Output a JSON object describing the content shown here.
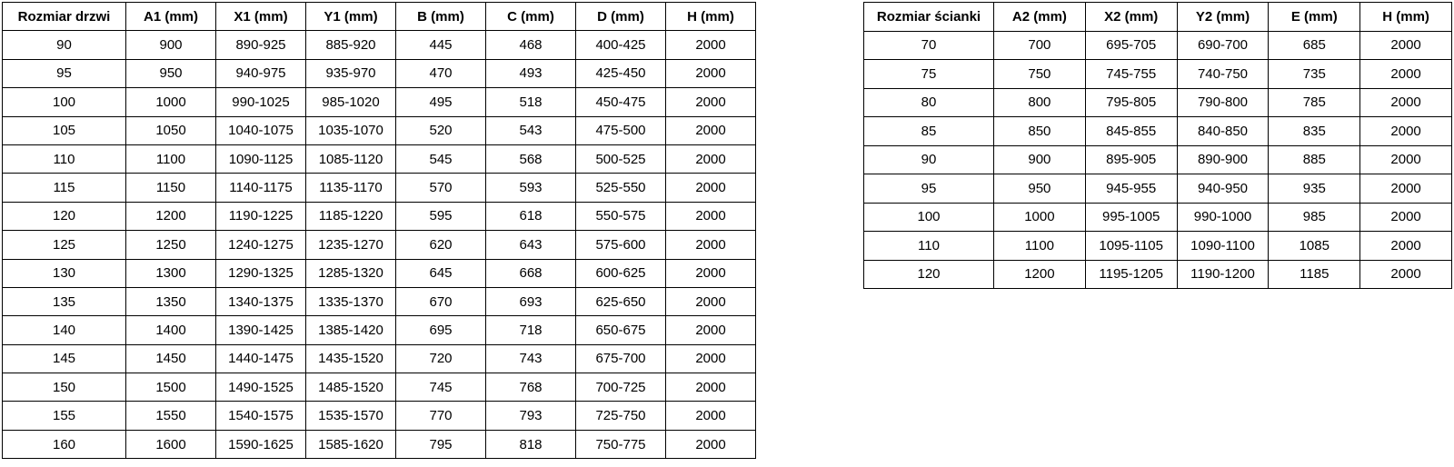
{
  "colors": {
    "border": "#000000",
    "text": "#000000",
    "background": "#ffffff"
  },
  "tables": [
    {
      "name": "door-size-table",
      "headers": [
        "Rozmiar drzwi",
        "A1 (mm)",
        "X1 (mm)",
        "Y1 (mm)",
        "B (mm)",
        "C (mm)",
        "D (mm)",
        "H (mm)"
      ],
      "rows": [
        [
          "90",
          "900",
          "890-925",
          "885-920",
          "445",
          "468",
          "400-425",
          "2000"
        ],
        [
          "95",
          "950",
          "940-975",
          "935-970",
          "470",
          "493",
          "425-450",
          "2000"
        ],
        [
          "100",
          "1000",
          "990-1025",
          "985-1020",
          "495",
          "518",
          "450-475",
          "2000"
        ],
        [
          "105",
          "1050",
          "1040-1075",
          "1035-1070",
          "520",
          "543",
          "475-500",
          "2000"
        ],
        [
          "110",
          "1100",
          "1090-1125",
          "1085-1120",
          "545",
          "568",
          "500-525",
          "2000"
        ],
        [
          "115",
          "1150",
          "1140-1175",
          "1135-1170",
          "570",
          "593",
          "525-550",
          "2000"
        ],
        [
          "120",
          "1200",
          "1190-1225",
          "1185-1220",
          "595",
          "618",
          "550-575",
          "2000"
        ],
        [
          "125",
          "1250",
          "1240-1275",
          "1235-1270",
          "620",
          "643",
          "575-600",
          "2000"
        ],
        [
          "130",
          "1300",
          "1290-1325",
          "1285-1320",
          "645",
          "668",
          "600-625",
          "2000"
        ],
        [
          "135",
          "1350",
          "1340-1375",
          "1335-1370",
          "670",
          "693",
          "625-650",
          "2000"
        ],
        [
          "140",
          "1400",
          "1390-1425",
          "1385-1420",
          "695",
          "718",
          "650-675",
          "2000"
        ],
        [
          "145",
          "1450",
          "1440-1475",
          "1435-1520",
          "720",
          "743",
          "675-700",
          "2000"
        ],
        [
          "150",
          "1500",
          "1490-1525",
          "1485-1520",
          "745",
          "768",
          "700-725",
          "2000"
        ],
        [
          "155",
          "1550",
          "1540-1575",
          "1535-1570",
          "770",
          "793",
          "725-750",
          "2000"
        ],
        [
          "160",
          "1600",
          "1590-1625",
          "1585-1620",
          "795",
          "818",
          "750-775",
          "2000"
        ]
      ]
    },
    {
      "name": "wall-size-table",
      "headers": [
        "Rozmiar ścianki",
        "A2 (mm)",
        "X2 (mm)",
        "Y2 (mm)",
        "E (mm)",
        "H (mm)"
      ],
      "rows": [
        [
          "70",
          "700",
          "695-705",
          "690-700",
          "685",
          "2000"
        ],
        [
          "75",
          "750",
          "745-755",
          "740-750",
          "735",
          "2000"
        ],
        [
          "80",
          "800",
          "795-805",
          "790-800",
          "785",
          "2000"
        ],
        [
          "85",
          "850",
          "845-855",
          "840-850",
          "835",
          "2000"
        ],
        [
          "90",
          "900",
          "895-905",
          "890-900",
          "885",
          "2000"
        ],
        [
          "95",
          "950",
          "945-955",
          "940-950",
          "935",
          "2000"
        ],
        [
          "100",
          "1000",
          "995-1005",
          "990-1000",
          "985",
          "2000"
        ],
        [
          "110",
          "1100",
          "1095-1105",
          "1090-1100",
          "1085",
          "2000"
        ],
        [
          "120",
          "1200",
          "1195-1205",
          "1190-1200",
          "1185",
          "2000"
        ]
      ]
    }
  ]
}
